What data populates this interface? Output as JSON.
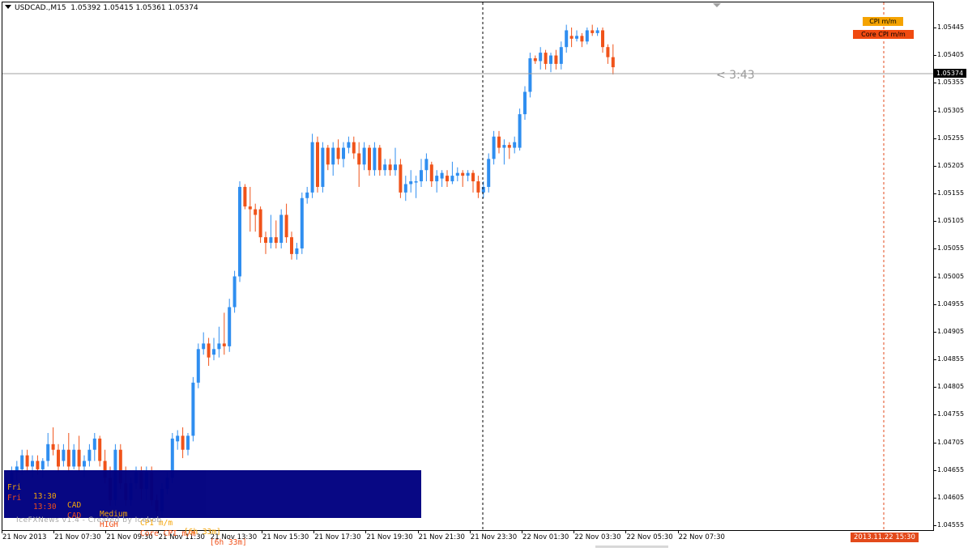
{
  "header": {
    "symbol": "USDCAD.,M15",
    "ohlc": "1.05392 1.05415 1.05361 1.05374"
  },
  "price_axis": {
    "labels": [
      "1.05445",
      "1.05405",
      "1.05355",
      "1.05305",
      "1.05255",
      "1.05205",
      "1.05155",
      "1.05105",
      "1.05055",
      "1.05005",
      "1.04955",
      "1.04905",
      "1.04855",
      "1.04805",
      "1.04755",
      "1.04705",
      "1.04655",
      "1.04605",
      "1.04555"
    ],
    "current": "1.05374"
  },
  "time_axis": {
    "labels": [
      "21 Nov 2013",
      "21 Nov 07:30",
      "21 Nov 09:30",
      "21 Nov 11:30",
      "21 Nov 13:30",
      "21 Nov 15:30",
      "21 Nov 17:30",
      "21 Nov 19:30",
      "21 Nov 21:30",
      "21 Nov 23:30",
      "22 Nov 01:30",
      "22 Nov 03:30",
      "22 Nov 05:30",
      "22 Nov 07:30"
    ],
    "event_marker": "2013.11.22 15:30"
  },
  "countdown": "< 3:43",
  "event_tags": [
    {
      "label": "CPI m/m",
      "color": "#f5a300"
    },
    {
      "label": "Core CPI m/m",
      "color": "#f04a10"
    }
  ],
  "news": {
    "rows": [
      {
        "day": "Fri",
        "time": "13:30",
        "currency": "CAD",
        "impact": "Medium",
        "event": "CPI m/m",
        "countdown": "[6h 33m]",
        "color": "#f5a300"
      },
      {
        "day": "Fri",
        "time": "13:30",
        "currency": "CAD",
        "impact": "HIGH",
        "event": "Core CPI m/m",
        "countdown": "[6h 33m]",
        "color": "#f04a10"
      }
    ],
    "credit": "IceFXNews v1.4 - Created by Icebob"
  },
  "colors": {
    "bull": "#2f8ef0",
    "bear": "#f0531a",
    "panel": "#000080",
    "grid_line": "#a0a0a0"
  },
  "chart_data": {
    "type": "candlestick",
    "symbol": "USDCAD.",
    "timeframe": "M15",
    "ylim": [
      1.04545,
      1.05485
    ],
    "current_price": 1.05374,
    "candles": [
      [
        1.04605,
        1.0464,
        1.0459,
        1.0463
      ],
      [
        1.0463,
        1.0466,
        1.0462,
        1.0465
      ],
      [
        1.0465,
        1.0467,
        1.04635,
        1.0466
      ],
      [
        1.04655,
        1.0469,
        1.04645,
        1.0468
      ],
      [
        1.0468,
        1.0469,
        1.0465,
        1.0466
      ],
      [
        1.0466,
        1.0468,
        1.0464,
        1.0467
      ],
      [
        1.0467,
        1.0468,
        1.04645,
        1.04655
      ],
      [
        1.04655,
        1.04675,
        1.0464,
        1.0467
      ],
      [
        1.0467,
        1.0472,
        1.0466,
        1.047
      ],
      [
        1.047,
        1.0473,
        1.0468,
        1.0469
      ],
      [
        1.0469,
        1.047,
        1.0465,
        1.0466
      ],
      [
        1.0467,
        1.047,
        1.0466,
        1.0469
      ],
      [
        1.0469,
        1.0472,
        1.0465,
        1.0466
      ],
      [
        1.0466,
        1.047,
        1.04655,
        1.0469
      ],
      [
        1.0469,
        1.04715,
        1.0465,
        1.0466
      ],
      [
        1.0466,
        1.0468,
        1.0464,
        1.0467
      ],
      [
        1.0467,
        1.047,
        1.0466,
        1.0469
      ],
      [
        1.0469,
        1.0472,
        1.0467,
        1.0471
      ],
      [
        1.0471,
        1.04715,
        1.0466,
        1.0467
      ],
      [
        1.0467,
        1.0469,
        1.0463,
        1.0464
      ],
      [
        1.0464,
        1.0466,
        1.0459,
        1.046
      ],
      [
        1.046,
        1.047,
        1.0459,
        1.0469
      ],
      [
        1.0469,
        1.047,
        1.0462,
        1.0463
      ],
      [
        1.0463,
        1.0466,
        1.0459,
        1.046
      ],
      [
        1.046,
        1.0464,
        1.0459,
        1.0463
      ],
      [
        1.0463,
        1.0466,
        1.0462,
        1.0465
      ],
      [
        1.0465,
        1.0466,
        1.046,
        1.0462
      ],
      [
        1.0462,
        1.0466,
        1.046,
        1.0465
      ],
      [
        1.0465,
        1.0466,
        1.0459,
        1.046
      ],
      [
        1.046,
        1.0461,
        1.0457,
        1.0458
      ],
      [
        1.0458,
        1.0463,
        1.0457,
        1.0462
      ],
      [
        1.0462,
        1.0465,
        1.0461,
        1.0464
      ],
      [
        1.0464,
        1.0472,
        1.0463,
        1.0471
      ],
      [
        1.04705,
        1.04725,
        1.0469,
        1.04715
      ],
      [
        1.04715,
        1.0473,
        1.04675,
        1.0469
      ],
      [
        1.0469,
        1.0472,
        1.0468,
        1.04715
      ],
      [
        1.04715,
        1.0482,
        1.04705,
        1.0481
      ],
      [
        1.0481,
        1.0488,
        1.048,
        1.0487
      ],
      [
        1.0487,
        1.049,
        1.0486,
        1.0488
      ],
      [
        1.0488,
        1.0489,
        1.0484,
        1.04855
      ],
      [
        1.0486,
        1.0489,
        1.0485,
        1.0487
      ],
      [
        1.0487,
        1.0491,
        1.04855,
        1.0488
      ],
      [
        1.0488,
        1.04935,
        1.0486,
        1.04875
      ],
      [
        1.04875,
        1.0496,
        1.04865,
        1.04945
      ],
      [
        1.04945,
        1.0501,
        1.04935,
        1.05
      ],
      [
        1.05,
        1.0517,
        1.0499,
        1.0516
      ],
      [
        1.0516,
        1.05165,
        1.0512,
        1.05125
      ],
      [
        1.05125,
        1.0516,
        1.0508,
        1.0512
      ],
      [
        1.0512,
        1.0513,
        1.0508,
        1.0511
      ],
      [
        1.0512,
        1.05125,
        1.0506,
        1.0507
      ],
      [
        1.0507,
        1.0508,
        1.0504,
        1.0506
      ],
      [
        1.0506,
        1.0511,
        1.0505,
        1.0507
      ],
      [
        1.0507,
        1.051,
        1.0505,
        1.0506
      ],
      [
        1.0506,
        1.0512,
        1.0505,
        1.0511
      ],
      [
        1.0511,
        1.0513,
        1.0506,
        1.0507
      ],
      [
        1.0507,
        1.0508,
        1.0503,
        1.0504
      ],
      [
        1.0504,
        1.0506,
        1.0503,
        1.0505
      ],
      [
        1.0505,
        1.0515,
        1.0504,
        1.0514
      ],
      [
        1.0514,
        1.0516,
        1.0513,
        1.0515
      ],
      [
        1.0515,
        1.05255,
        1.0514,
        1.0524
      ],
      [
        1.0524,
        1.0525,
        1.0515,
        1.0516
      ],
      [
        1.0516,
        1.0524,
        1.0515,
        1.0523
      ],
      [
        1.0523,
        1.05235,
        1.0519,
        1.052
      ],
      [
        1.052,
        1.0524,
        1.0518,
        1.0523
      ],
      [
        1.0523,
        1.05245,
        1.052,
        1.0521
      ],
      [
        1.0521,
        1.0524,
        1.05195,
        1.0523
      ],
      [
        1.0523,
        1.0525,
        1.0522,
        1.0524
      ],
      [
        1.0524,
        1.0525,
        1.0521,
        1.0522
      ],
      [
        1.0522,
        1.0524,
        1.0516,
        1.052
      ],
      [
        1.052,
        1.0524,
        1.0519,
        1.0523
      ],
      [
        1.0523,
        1.05235,
        1.0518,
        1.0519
      ],
      [
        1.0519,
        1.0524,
        1.0518,
        1.0523
      ],
      [
        1.0523,
        1.05235,
        1.0518,
        1.0519
      ],
      [
        1.0519,
        1.0521,
        1.0518,
        1.052
      ],
      [
        1.052,
        1.0521,
        1.0518,
        1.0519
      ],
      [
        1.0519,
        1.0523,
        1.0518,
        1.052
      ],
      [
        1.052,
        1.0521,
        1.0514,
        1.0515
      ],
      [
        1.0515,
        1.0518,
        1.05135,
        1.05165
      ],
      [
        1.05165,
        1.0519,
        1.0515,
        1.0517
      ],
      [
        1.0517,
        1.0518,
        1.0514,
        1.0517
      ],
      [
        1.0517,
        1.0521,
        1.0516,
        1.0519
      ],
      [
        1.0519,
        1.0522,
        1.0517,
        1.0521
      ],
      [
        1.052,
        1.05205,
        1.0516,
        1.0517
      ],
      [
        1.0517,
        1.0519,
        1.0515,
        1.0518
      ],
      [
        1.05175,
        1.0519,
        1.0516,
        1.05185
      ],
      [
        1.0518,
        1.0519,
        1.0516,
        1.0517
      ],
      [
        1.0517,
        1.05205,
        1.05165,
        1.0518
      ],
      [
        1.0518,
        1.05195,
        1.0517,
        1.05185
      ],
      [
        1.05185,
        1.0519,
        1.0516,
        1.0518
      ],
      [
        1.0518,
        1.0519,
        1.0517,
        1.05185
      ],
      [
        1.05185,
        1.0519,
        1.0515,
        1.0517
      ],
      [
        1.0517,
        1.0518,
        1.0514,
        1.0515
      ],
      [
        1.0515,
        1.0517,
        1.0514,
        1.0516
      ],
      [
        1.0516,
        1.0522,
        1.0515,
        1.0521
      ],
      [
        1.0521,
        1.0526,
        1.052,
        1.0525
      ],
      [
        1.0525,
        1.0526,
        1.0522,
        1.0523
      ],
      [
        1.0523,
        1.05245,
        1.052,
        1.05235
      ],
      [
        1.05235,
        1.0524,
        1.0521,
        1.0523
      ],
      [
        1.0523,
        1.0525,
        1.0522,
        1.0524
      ],
      [
        1.0523,
        1.053,
        1.05225,
        1.0529
      ],
      [
        1.0529,
        1.0534,
        1.0528,
        1.0533
      ],
      [
        1.0533,
        1.054,
        1.0532,
        1.0539
      ],
      [
        1.0539,
        1.05395,
        1.0538,
        1.05385
      ],
      [
        1.05385,
        1.0541,
        1.0537,
        1.054
      ],
      [
        1.054,
        1.05405,
        1.0537,
        1.0538
      ],
      [
        1.0538,
        1.054,
        1.05365,
        1.05395
      ],
      [
        1.05395,
        1.05405,
        1.0537,
        1.0538
      ],
      [
        1.0538,
        1.0542,
        1.0537,
        1.0541
      ],
      [
        1.0541,
        1.0545,
        1.054,
        1.0544
      ],
      [
        1.0543,
        1.05445,
        1.0541,
        1.05425
      ],
      [
        1.05425,
        1.0544,
        1.0542,
        1.0543
      ],
      [
        1.0543,
        1.05435,
        1.0541,
        1.0542
      ],
      [
        1.0542,
        1.05445,
        1.05415,
        1.0544
      ],
      [
        1.0544,
        1.0545,
        1.0543,
        1.05435
      ],
      [
        1.05435,
        1.05445,
        1.0543,
        1.0544
      ],
      [
        1.0544,
        1.05445,
        1.054,
        1.0541
      ],
      [
        1.0541,
        1.05415,
        1.0538,
        1.05392
      ],
      [
        1.05392,
        1.05415,
        1.05361,
        1.05374
      ]
    ]
  }
}
